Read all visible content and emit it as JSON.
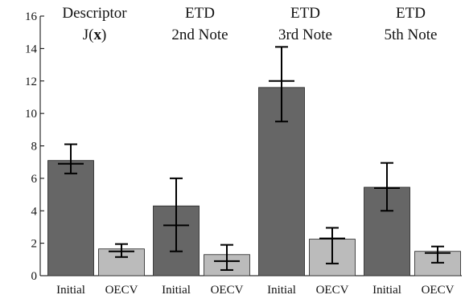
{
  "chart_data": {
    "type": "bar",
    "ylim": [
      0,
      16
    ],
    "yticks": [
      0,
      2,
      4,
      6,
      8,
      10,
      12,
      14,
      16
    ],
    "grid": false,
    "groups": [
      {
        "title_lines": [
          "Descriptor",
          "J(x)"
        ],
        "bold_char": "x"
      },
      {
        "title_lines": [
          "ETD",
          "2nd Note"
        ]
      },
      {
        "title_lines": [
          "ETD",
          "3rd Note"
        ]
      },
      {
        "title_lines": [
          "ETD",
          "5th Note"
        ]
      }
    ],
    "series": [
      {
        "name": "Initial",
        "color": "#666666",
        "values": [
          7.1,
          4.3,
          11.6,
          5.45
        ],
        "err_center": [
          6.9,
          3.1,
          12.0,
          5.4
        ],
        "err_low": [
          6.3,
          1.5,
          9.5,
          4.0
        ],
        "err_high": [
          8.1,
          6.0,
          14.1,
          6.95
        ]
      },
      {
        "name": "OECV",
        "color": "#bbbbbb",
        "values": [
          1.65,
          1.3,
          2.25,
          1.5
        ],
        "err_center": [
          1.5,
          0.9,
          2.3,
          1.4
        ],
        "err_low": [
          1.15,
          0.35,
          0.75,
          0.8
        ],
        "err_high": [
          1.95,
          1.9,
          2.95,
          1.8
        ]
      }
    ]
  }
}
